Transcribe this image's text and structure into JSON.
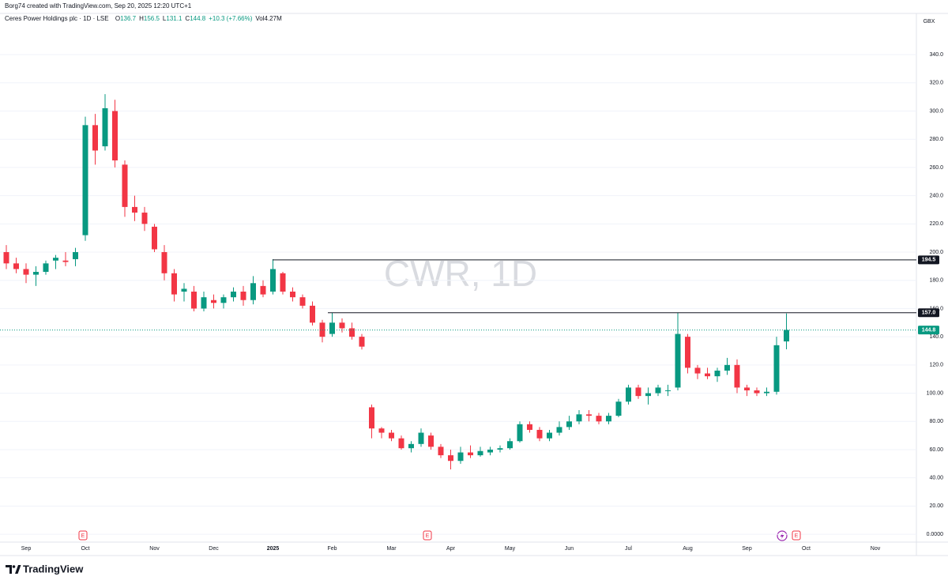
{
  "chart_data": {
    "type": "candlestick",
    "credit": "Borg74 created with TradingView.com, Sep 20, 2025 12:20 UTC+1",
    "symbol": "Ceres Power Holdings plc · 1D · LSE",
    "ohlc_labels": [
      "O",
      "H",
      "L",
      "C"
    ],
    "change": "+10.3 (+7.66%)",
    "volume": "Vol4.27M",
    "currency": "GBX",
    "watermark": "CWR, 1D",
    "footer": "TradingView",
    "events": [
      "E",
      "E",
      "E"
    ],
    "up_color": "#089981",
    "down_color": "#f23645",
    "grid": true,
    "categories": [
      null,
      null,
      "Sep",
      null,
      null,
      null,
      null,
      null,
      "Oct",
      null,
      null,
      null,
      null,
      null,
      null,
      "Nov",
      null,
      null,
      null,
      null,
      null,
      "Dec",
      null,
      null,
      null,
      null,
      null,
      "2025",
      null,
      null,
      null,
      null,
      null,
      "Feb",
      null,
      null,
      null,
      null,
      null,
      "Mar",
      null,
      null,
      null,
      null,
      null,
      "Apr",
      null,
      null,
      null,
      null,
      null,
      "May",
      null,
      null,
      null,
      null,
      null,
      "Jun",
      null,
      null,
      null,
      null,
      null,
      "Jul",
      null,
      null,
      null,
      null,
      null,
      "Aug",
      null,
      null,
      null,
      null,
      null,
      "Sep",
      null,
      null,
      null,
      null,
      null,
      "Oct",
      null,
      null,
      null,
      null,
      null,
      null,
      "Nov",
      null,
      null,
      null
    ],
    "open": [
      200,
      192,
      188,
      184,
      186,
      194,
      194,
      195,
      212,
      290,
      275,
      300,
      262,
      232,
      228,
      218,
      200,
      185,
      172,
      172,
      160,
      166,
      164,
      168,
      172,
      166,
      176,
      172,
      185,
      172,
      168,
      162,
      150,
      142,
      150,
      146,
      140,
      90,
      75,
      72,
      68,
      61,
      64,
      70,
      62,
      56,
      52,
      58,
      56,
      58,
      60,
      61,
      66,
      78,
      74,
      68,
      72,
      76,
      80,
      85,
      84,
      80,
      84,
      94,
      104,
      98,
      100,
      102,
      104,
      140,
      118,
      114,
      112,
      116,
      120,
      104,
      102,
      100,
      101,
      136.7,
      null,
      null,
      null,
      null,
      null,
      null,
      null,
      null,
      null,
      null,
      null,
      null
    ],
    "high": [
      205,
      196,
      192,
      190,
      194,
      198,
      200,
      203,
      296,
      298,
      312,
      308,
      265,
      240,
      232,
      220,
      205,
      188,
      178,
      176,
      172,
      170,
      170,
      175,
      176,
      183,
      180,
      195,
      186,
      175,
      170,
      165,
      152,
      157,
      153,
      150,
      142,
      92,
      76,
      74,
      70,
      66,
      75,
      72,
      64,
      60,
      62,
      63,
      62,
      62,
      63,
      68,
      80,
      80,
      76,
      74,
      80,
      84,
      88,
      88,
      86,
      86,
      96,
      106,
      106,
      104,
      106,
      106,
      157,
      142,
      120,
      118,
      118,
      125,
      124,
      106,
      104,
      104,
      140,
      156.5,
      null,
      null,
      null,
      null,
      null,
      null,
      null,
      null,
      null,
      null,
      null,
      null
    ],
    "low": [
      188,
      185,
      178,
      176,
      184,
      188,
      190,
      190,
      208,
      262,
      272,
      260,
      225,
      222,
      215,
      200,
      180,
      165,
      165,
      158,
      158,
      160,
      160,
      165,
      162,
      163,
      168,
      170,
      170,
      165,
      160,
      148,
      136,
      140,
      143,
      138,
      131,
      68,
      68,
      66,
      60,
      58,
      62,
      60,
      54,
      46,
      50,
      54,
      55,
      56,
      58,
      60,
      65,
      72,
      66,
      66,
      70,
      74,
      78,
      80,
      78,
      78,
      83,
      92,
      96,
      92,
      98,
      98,
      102,
      114,
      110,
      110,
      108,
      113,
      100,
      98,
      98,
      98,
      99,
      131.1,
      null,
      null,
      null,
      null,
      null,
      null,
      null,
      null,
      null,
      null,
      null,
      null
    ],
    "close": [
      192,
      188,
      184,
      186,
      192,
      196,
      193,
      200,
      290,
      272,
      302,
      265,
      232,
      228,
      220,
      202,
      185,
      170,
      174,
      160,
      168,
      164,
      168,
      172,
      166,
      178,
      170,
      188,
      172,
      168,
      162,
      150,
      140,
      150,
      146,
      140,
      133,
      75,
      72,
      68,
      61,
      64,
      72,
      62,
      56,
      52,
      58,
      56,
      59,
      60,
      61,
      66,
      78,
      74,
      68,
      72,
      76,
      80,
      85,
      84,
      80,
      84,
      94,
      104,
      98,
      100,
      104,
      102,
      142,
      118,
      114,
      112,
      116,
      120,
      104,
      102,
      100,
      101,
      134,
      144.8,
      null,
      null,
      null,
      null,
      null,
      null,
      null,
      null,
      null,
      null,
      null,
      null
    ],
    "levels": [
      194.5,
      {
        "value": 157,
        "label": "157.0"
      }
    ],
    "ylim": [
      -7.8,
      367.5
    ],
    "yticks": [
      {
        "value": 0,
        "label": "0.0000"
      },
      {
        "value": 20,
        "label": "20.00"
      },
      {
        "value": 40,
        "label": "40.00"
      },
      {
        "value": 60,
        "label": "60.00"
      },
      {
        "value": 80,
        "label": "80.00"
      },
      {
        "value": 100,
        "label": "100.00"
      },
      {
        "value": 120,
        "label": "120.0"
      },
      {
        "value": 140,
        "label": "140.0"
      },
      {
        "value": 160,
        "label": "160.0"
      },
      {
        "value": 180,
        "label": "180.0"
      },
      {
        "value": 200,
        "label": "200.0"
      },
      {
        "value": 220,
        "label": "220.0"
      },
      {
        "value": 240,
        "label": "240.0"
      },
      {
        "value": 260,
        "label": "260.0"
      },
      {
        "value": 280,
        "label": "280.0"
      },
      {
        "value": 300,
        "label": "300.0"
      },
      {
        "value": 320,
        "label": "320.0"
      },
      {
        "value": 340,
        "label": "340.0"
      }
    ]
  }
}
